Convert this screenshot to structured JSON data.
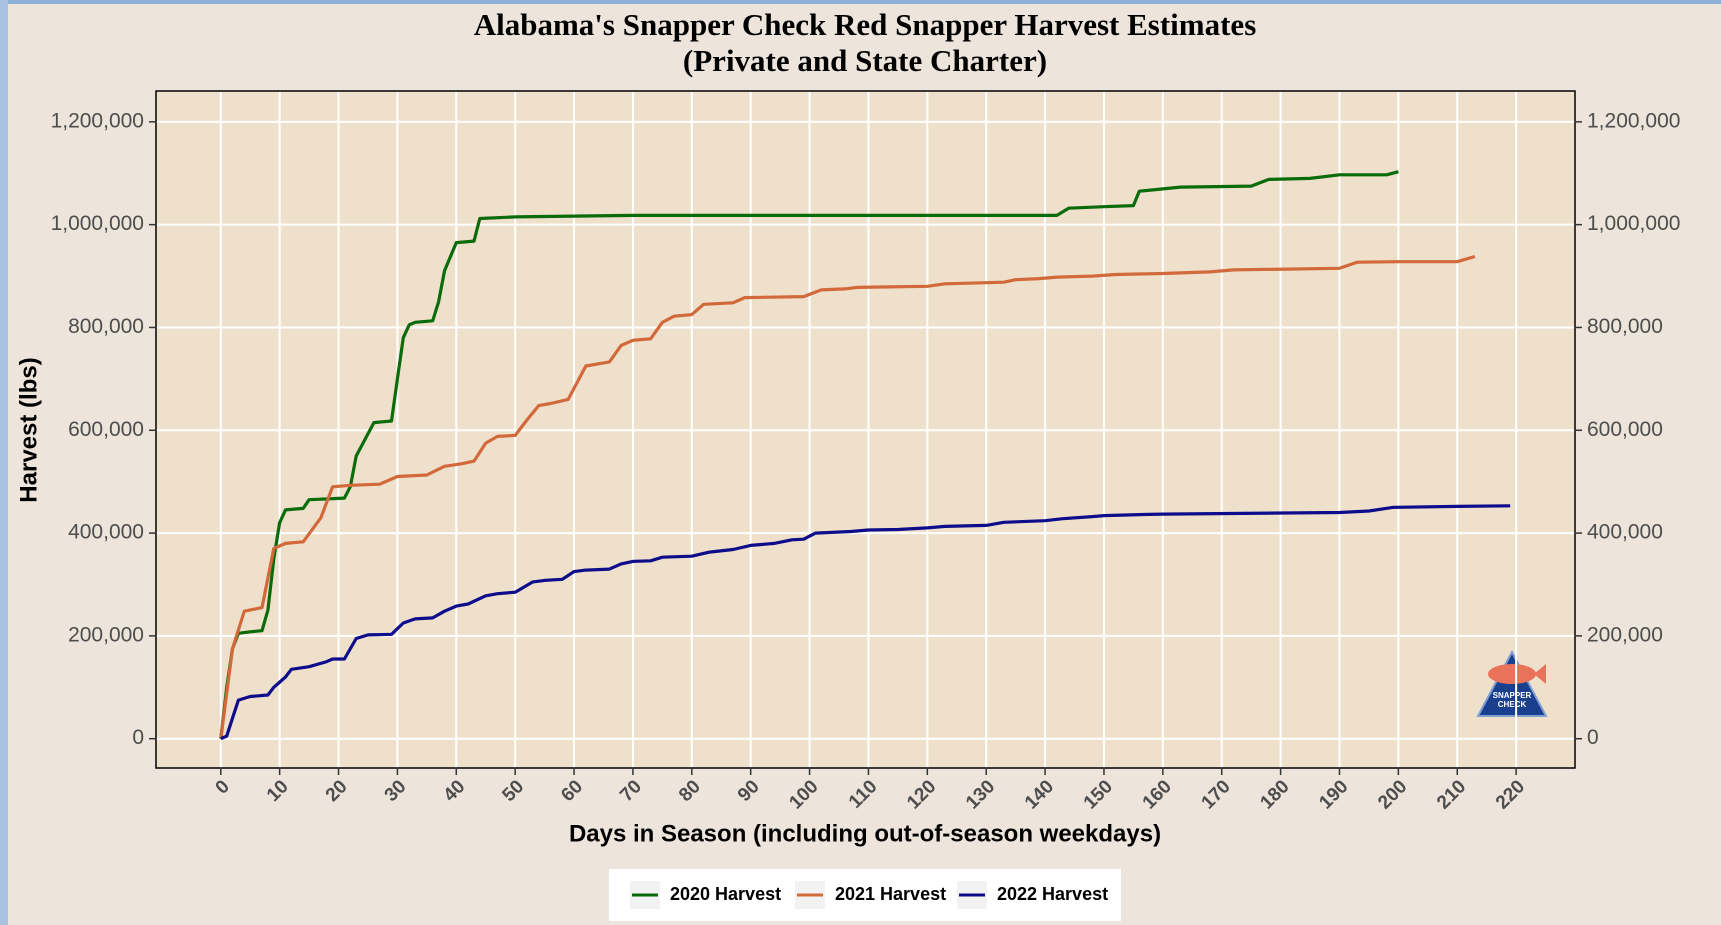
{
  "chart_data": {
    "type": "line",
    "title": "Alabama's Snapper Check Red Snapper Harvest Estimates",
    "subtitle": "(Private and State Charter)",
    "x_label": "Days in Season (including out-of-season weekdays)",
    "y_label": "Harvest (lbs)",
    "xlim": [
      -11,
      230
    ],
    "ylim": [
      -57000,
      1260000
    ],
    "y2lim": [
      -57000,
      1260000
    ],
    "xticks": [
      0,
      10,
      20,
      30,
      40,
      50,
      60,
      70,
      80,
      90,
      100,
      110,
      120,
      130,
      140,
      150,
      160,
      170,
      180,
      190,
      200,
      210,
      220
    ],
    "yticks": [
      0,
      {
        "value": 200000,
        "label": "200,000"
      },
      {
        "value": 400000,
        "label": "400,000"
      },
      {
        "value": 600000,
        "label": "600,000"
      },
      {
        "value": 800000,
        "label": "800,000"
      },
      {
        "value": 1000000,
        "label": "1,000,000"
      },
      {
        "value": 1200000,
        "label": "1,200,000"
      }
    ],
    "y2ticks": [
      0,
      {
        "value": 200000,
        "label": "200,000"
      },
      {
        "value": 400000,
        "label": "400,000"
      },
      {
        "value": 600000,
        "label": "600,000"
      },
      {
        "value": 800000,
        "label": "800,000"
      },
      {
        "value": 1000000,
        "label": "1,000,000"
      },
      {
        "value": 1200000,
        "label": "1,200,000"
      }
    ],
    "grid": true,
    "legend": "bottom",
    "series": [
      {
        "name": "2020 Harvest",
        "color": "#0a6b0a",
        "x": [
          0,
          1,
          2,
          3,
          5,
          7,
          8,
          9,
          10,
          11,
          14,
          15,
          21,
          22,
          23,
          26,
          29,
          30,
          31,
          32,
          33,
          36,
          37,
          38,
          40,
          43,
          44,
          50,
          70,
          142,
          144,
          150,
          155,
          156,
          163,
          175,
          178,
          185,
          190,
          198,
          200
        ],
        "values": [
          0,
          100000,
          175000,
          205000,
          208000,
          210000,
          250000,
          350000,
          420000,
          445000,
          448000,
          465000,
          468000,
          490000,
          550000,
          615000,
          618000,
          700000,
          780000,
          805000,
          810000,
          813000,
          850000,
          910000,
          965000,
          968000,
          1012000,
          1015000,
          1018000,
          1018000,
          1032000,
          1035000,
          1037000,
          1065000,
          1073000,
          1075000,
          1088000,
          1090000,
          1097000,
          1097000,
          1103000
        ]
      },
      {
        "name": "2021 Harvest",
        "color": "#d2693a",
        "x": [
          0,
          2,
          4,
          7,
          9,
          11,
          14,
          17,
          19,
          22,
          27,
          30,
          35,
          38,
          41,
          43,
          45,
          47,
          50,
          52,
          54,
          56,
          59,
          62,
          66,
          68,
          70,
          73,
          75,
          77,
          80,
          82,
          87,
          89,
          99,
          102,
          106,
          108,
          120,
          123,
          130,
          133,
          135,
          139,
          142,
          148,
          152,
          160,
          168,
          172,
          190,
          193,
          200,
          210,
          213
        ],
        "values": [
          0,
          175000,
          248000,
          255000,
          370000,
          380000,
          383000,
          430000,
          490000,
          493000,
          495000,
          510000,
          513000,
          530000,
          535000,
          540000,
          575000,
          588000,
          590000,
          620000,
          648000,
          652000,
          660000,
          725000,
          733000,
          765000,
          775000,
          778000,
          810000,
          822000,
          825000,
          845000,
          848000,
          858000,
          860000,
          873000,
          875000,
          878000,
          880000,
          885000,
          887000,
          888000,
          893000,
          895000,
          898000,
          900000,
          903000,
          905000,
          908000,
          912000,
          915000,
          927000,
          928000,
          928000,
          938000
        ]
      },
      {
        "name": "2022 Harvest",
        "color": "#0d0d8c",
        "x": [
          0,
          1,
          2,
          3,
          5,
          8,
          9,
          11,
          12,
          15,
          18,
          19,
          21,
          23,
          25,
          29,
          31,
          33,
          36,
          38,
          40,
          42,
          45,
          47,
          50,
          53,
          55,
          58,
          60,
          62,
          66,
          68,
          70,
          73,
          75,
          80,
          83,
          87,
          90,
          94,
          97,
          99,
          101,
          107,
          110,
          115,
          120,
          123,
          130,
          133,
          140,
          143,
          148,
          150,
          156,
          160,
          190,
          195,
          199,
          210,
          219
        ],
        "values": [
          0,
          5000,
          40000,
          75000,
          82000,
          85000,
          100000,
          120000,
          135000,
          140000,
          150000,
          155000,
          155000,
          195000,
          202000,
          203000,
          225000,
          233000,
          235000,
          248000,
          258000,
          262000,
          278000,
          282000,
          285000,
          305000,
          308000,
          310000,
          325000,
          328000,
          330000,
          340000,
          345000,
          346000,
          353000,
          355000,
          363000,
          368000,
          376000,
          380000,
          387000,
          388000,
          400000,
          403000,
          406000,
          407000,
          410000,
          413000,
          415000,
          421000,
          424000,
          428000,
          432000,
          434000,
          436000,
          437000,
          440000,
          443000,
          450000,
          452000,
          453000
        ]
      }
    ]
  }
}
